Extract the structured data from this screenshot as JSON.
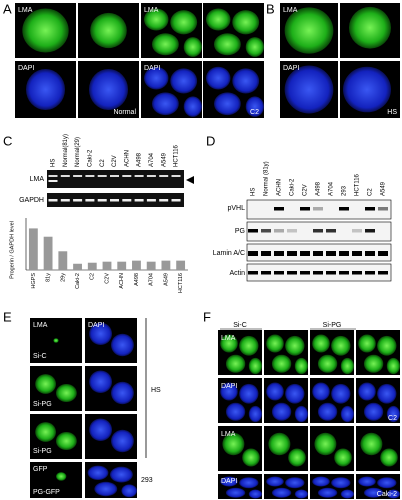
{
  "panels": {
    "a": {
      "label": "A",
      "lma_1": "LMA",
      "lma_2": "LMA",
      "dapi_1": "DAPI",
      "dapi_2": "DAPI",
      "normal": "Normal",
      "c2": "C2"
    },
    "b": {
      "label": "B",
      "lma": "LMA",
      "dapi": "DAPI",
      "hs": "HS"
    },
    "c": {
      "label": "C",
      "lanes": [
        "HS",
        "Normal(81y)",
        "Normal(29)",
        "Caki-2",
        "C2",
        "C2V",
        "ACHN",
        "A498",
        "A704",
        "A549",
        "HCT116"
      ],
      "gel_rows": [
        "LMA",
        "GAPDH"
      ]
    },
    "d": {
      "label": "D",
      "lanes": [
        "HS",
        "Normal (81y)",
        "ACHN",
        "Caki-2",
        "C2V",
        "A498",
        "A704",
        "293",
        "HCT116",
        "C2",
        "A549"
      ],
      "rows": [
        "pVHL",
        "PG",
        "Lamin A/C",
        "Actin"
      ]
    },
    "e": {
      "label": "E",
      "lma": "LMA",
      "dapi": "DAPI",
      "si_c": "Si-C",
      "si_pg_1": "Si-PG",
      "si_pg_2": "Si-PG",
      "hs": "HS",
      "gfp": "GFP",
      "pg_gfp": "PG-GFP",
      "cell_293": "293"
    },
    "f": {
      "label": "F",
      "si_c": "Si-C",
      "si_pg": "Si-PG",
      "lma_1": "LMA",
      "dapi_1": "DAPI",
      "c2": "C2",
      "lma_2": "LMA",
      "dapi_2": "DAPI",
      "caki2": "Caki-2"
    }
  },
  "chart_data": {
    "type": "bar",
    "y_label": "Progerin / GAPDH level",
    "categories": [
      "HGPS",
      "81y",
      "29y",
      "Caki-2",
      "C2",
      "C2V",
      "ACHN",
      "A498",
      "A704",
      "A549",
      "HCT116"
    ],
    "values": [
      2.0,
      1.6,
      0.9,
      0.3,
      0.35,
      0.4,
      0.4,
      0.45,
      0.4,
      0.45,
      0.45
    ],
    "color": "#999999",
    "ylim": [
      0,
      2.5
    ]
  }
}
